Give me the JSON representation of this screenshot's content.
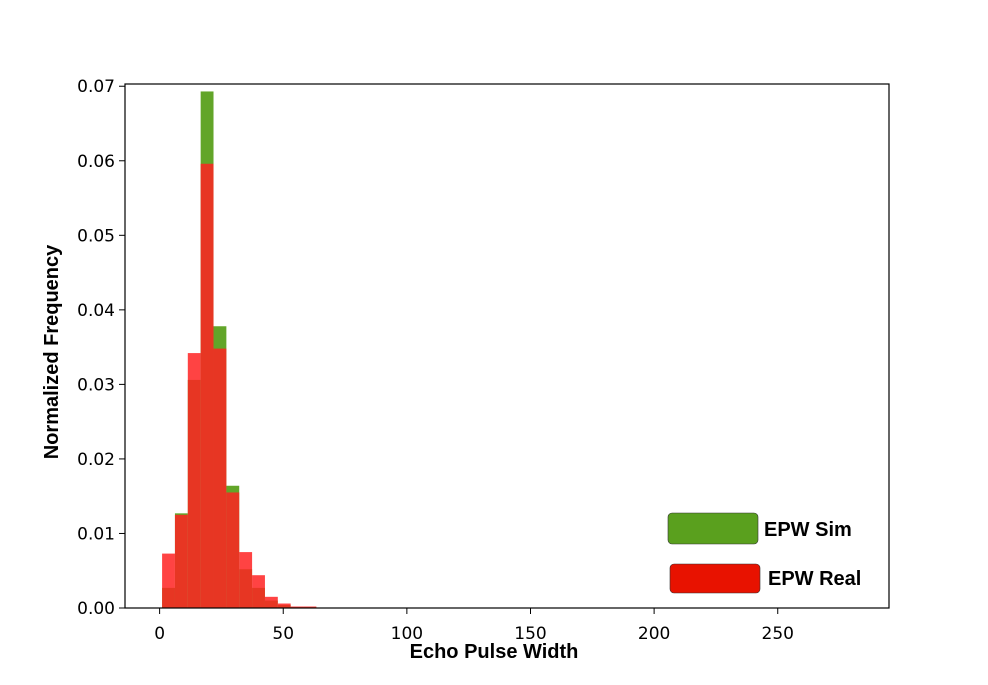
{
  "chart_data": {
    "type": "bar",
    "subtype": "histogram-overlay",
    "title": "",
    "xlabel": "Echo Pulse Width",
    "ylabel": "Normalized Frequency",
    "xlim": [
      -14,
      295
    ],
    "ylim": [
      0,
      0.0703
    ],
    "xticks": [
      0,
      50,
      100,
      150,
      200,
      250
    ],
    "yticks": [
      0.0,
      0.01,
      0.02,
      0.03,
      0.04,
      0.05,
      0.06,
      0.07
    ],
    "ytick_labels": [
      "0.00",
      "0.01",
      "0.02",
      "0.03",
      "0.04",
      "0.05",
      "0.06",
      "0.07"
    ],
    "grid": false,
    "legend_position": "bottom-right",
    "bin_edges": [
      1,
      6.2,
      11.4,
      16.6,
      21.8,
      27,
      32.2,
      37.4,
      42.6,
      47.8,
      53,
      58.2,
      63.4,
      68.6
    ],
    "series": [
      {
        "name": "EPW Sim",
        "color": "#5aa01e",
        "values": [
          0.0027,
          0.0127,
          0.0306,
          0.0693,
          0.0378,
          0.0164,
          0.0052,
          0.0027,
          0.001,
          0.0004,
          0.0001,
          0.0001,
          0.0
        ]
      },
      {
        "name": "EPW Real",
        "color": "#ff2222",
        "values": [
          0.0073,
          0.0125,
          0.0342,
          0.0596,
          0.0348,
          0.0155,
          0.0075,
          0.0044,
          0.0015,
          0.0006,
          0.0002,
          0.0002,
          0.0
        ]
      }
    ]
  }
}
